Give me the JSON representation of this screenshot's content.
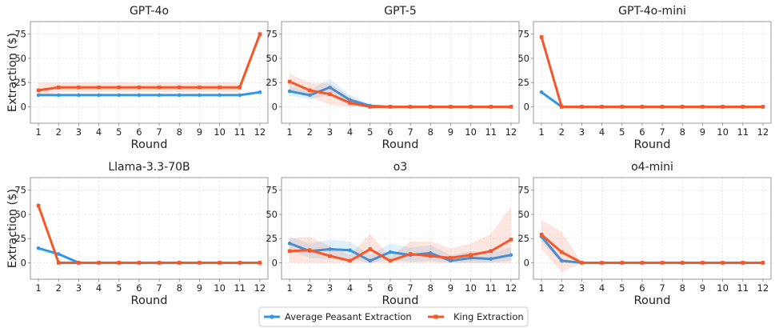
{
  "colors": {
    "peasant": "#2e97ea",
    "king": "#f4582a",
    "grid": "#dcdcdc",
    "axis": "#7f7f7f"
  },
  "legend": {
    "peasant_label": "Average Peasant Extraction",
    "king_label": "King Extraction",
    "placement": "bottom-center"
  },
  "shared_axes": {
    "xlabel": "Round",
    "ylabel": "Extraction ($)",
    "xticks": [
      "1",
      "2",
      "3",
      "4",
      "5",
      "6",
      "7",
      "8",
      "9",
      "10",
      "11",
      "12"
    ],
    "yticks": [
      "0",
      "25",
      "50",
      "75"
    ],
    "ylim": [
      -17,
      88
    ],
    "xlim": [
      0.6,
      12.4
    ],
    "grid": true
  },
  "chart_data": [
    {
      "type": "line",
      "title": "GPT-4o",
      "x": [
        1,
        2,
        3,
        4,
        5,
        6,
        7,
        8,
        9,
        10,
        11,
        12
      ],
      "series": [
        {
          "name": "Average Peasant Extraction",
          "values": [
            12,
            12,
            12,
            12,
            12,
            12,
            12,
            12,
            12,
            12,
            12,
            15
          ],
          "band_lower": [
            12,
            12,
            12,
            12,
            12,
            12,
            12,
            12,
            12,
            12,
            12,
            15
          ],
          "band_upper": [
            12,
            12,
            12,
            12,
            12,
            12,
            12,
            12,
            12,
            12,
            12,
            15
          ]
        },
        {
          "name": "King Extraction",
          "values": [
            17,
            20,
            20,
            20,
            20,
            20,
            20,
            20,
            20,
            20,
            20,
            75
          ],
          "band_lower": [
            10,
            15,
            15,
            15,
            15,
            15,
            15,
            15,
            15,
            15,
            15,
            73
          ],
          "band_upper": [
            25,
            25,
            25,
            25,
            25,
            25,
            25,
            25,
            25,
            25,
            25,
            79
          ]
        }
      ]
    },
    {
      "type": "line",
      "title": "GPT-5",
      "x": [
        1,
        2,
        3,
        4,
        5,
        6,
        7,
        8,
        9,
        10,
        11,
        12
      ],
      "series": [
        {
          "name": "Average Peasant Extraction",
          "values": [
            16,
            12,
            20,
            7,
            1,
            0,
            0,
            0,
            0,
            0,
            0,
            0
          ],
          "band_lower": [
            11,
            8,
            12,
            2,
            0,
            0,
            0,
            0,
            0,
            0,
            0,
            0
          ],
          "band_upper": [
            21,
            17,
            29,
            12,
            3,
            0,
            0,
            0,
            0,
            0,
            0,
            0
          ]
        },
        {
          "name": "King Extraction",
          "values": [
            26,
            17,
            13,
            4,
            0,
            0,
            0,
            0,
            0,
            0,
            0,
            0
          ],
          "band_lower": [
            17,
            10,
            2,
            0,
            0,
            0,
            0,
            0,
            0,
            0,
            0,
            0
          ],
          "band_upper": [
            34,
            25,
            24,
            10,
            1,
            0,
            0,
            0,
            0,
            0,
            0,
            0
          ]
        }
      ]
    },
    {
      "type": "line",
      "title": "GPT-4o-mini",
      "x": [
        1,
        2,
        3,
        4,
        5,
        6,
        7,
        8,
        9,
        10,
        11,
        12
      ],
      "series": [
        {
          "name": "Average Peasant Extraction",
          "values": [
            15,
            0,
            0,
            0,
            0,
            0,
            0,
            0,
            0,
            0,
            0,
            0
          ],
          "band_lower": [
            15,
            0,
            0,
            0,
            0,
            0,
            0,
            0,
            0,
            0,
            0,
            0
          ],
          "band_upper": [
            15,
            0,
            0,
            0,
            0,
            0,
            0,
            0,
            0,
            0,
            0,
            0
          ]
        },
        {
          "name": "King Extraction",
          "values": [
            72,
            0,
            0,
            0,
            0,
            0,
            0,
            0,
            0,
            0,
            0,
            0
          ],
          "band_lower": [
            70,
            0,
            0,
            0,
            0,
            0,
            0,
            0,
            0,
            0,
            0,
            0
          ],
          "band_upper": [
            74,
            0,
            0,
            0,
            0,
            0,
            0,
            0,
            0,
            0,
            0,
            0
          ]
        }
      ]
    },
    {
      "type": "line",
      "title": "Llama-3.3-70B",
      "x": [
        1,
        2,
        3,
        4,
        5,
        6,
        7,
        8,
        9,
        10,
        11,
        12
      ],
      "series": [
        {
          "name": "Average Peasant Extraction",
          "values": [
            15,
            9,
            0,
            0,
            0,
            0,
            0,
            0,
            0,
            0,
            0,
            0
          ],
          "band_lower": [
            15,
            9,
            0,
            0,
            0,
            0,
            0,
            0,
            0,
            0,
            0,
            0
          ],
          "band_upper": [
            15,
            9,
            0,
            0,
            0,
            0,
            0,
            0,
            0,
            0,
            0,
            0
          ]
        },
        {
          "name": "King Extraction",
          "values": [
            59,
            0,
            0,
            0,
            0,
            0,
            0,
            0,
            0,
            0,
            0,
            0
          ],
          "band_lower": [
            57,
            0,
            0,
            0,
            0,
            0,
            0,
            0,
            0,
            0,
            0,
            0
          ],
          "band_upper": [
            61,
            0,
            0,
            0,
            0,
            0,
            0,
            0,
            0,
            0,
            0,
            0
          ]
        }
      ]
    },
    {
      "type": "line",
      "title": "o3",
      "x": [
        1,
        2,
        3,
        4,
        5,
        6,
        7,
        8,
        9,
        10,
        11,
        12
      ],
      "series": [
        {
          "name": "Average Peasant Extraction",
          "values": [
            20,
            12,
            14,
            13,
            2,
            11,
            8,
            10,
            2,
            5,
            4,
            8
          ],
          "band_lower": [
            13,
            5,
            4,
            4,
            0,
            3,
            1,
            2,
            0,
            0,
            0,
            2
          ],
          "band_upper": [
            27,
            20,
            24,
            22,
            8,
            20,
            16,
            18,
            8,
            12,
            10,
            16
          ]
        },
        {
          "name": "King Extraction",
          "values": [
            12,
            13,
            7,
            2,
            14,
            2,
            9,
            7,
            5,
            8,
            12,
            24
          ],
          "band_lower": [
            0,
            0,
            0,
            0,
            0,
            0,
            0,
            0,
            0,
            0,
            0,
            0
          ],
          "band_upper": [
            25,
            27,
            17,
            8,
            30,
            6,
            22,
            22,
            15,
            20,
            30,
            58
          ]
        }
      ]
    },
    {
      "type": "line",
      "title": "o4-mini",
      "x": [
        1,
        2,
        3,
        4,
        5,
        6,
        7,
        8,
        9,
        10,
        11,
        12
      ],
      "series": [
        {
          "name": "Average Peasant Extraction",
          "values": [
            27,
            2,
            0,
            0,
            0,
            0,
            0,
            0,
            0,
            0,
            0,
            0
          ],
          "band_lower": [
            22,
            0,
            0,
            0,
            0,
            0,
            0,
            0,
            0,
            0,
            0,
            0
          ],
          "band_upper": [
            33,
            5,
            0,
            0,
            0,
            0,
            0,
            0,
            0,
            0,
            0,
            0
          ]
        },
        {
          "name": "King Extraction",
          "values": [
            29,
            11,
            0,
            0,
            0,
            0,
            0,
            0,
            0,
            0,
            0,
            0
          ],
          "band_lower": [
            14,
            -10,
            0,
            0,
            0,
            0,
            0,
            0,
            0,
            0,
            0,
            0
          ],
          "band_upper": [
            44,
            32,
            0,
            0,
            0,
            0,
            0,
            0,
            0,
            0,
            0,
            0
          ]
        }
      ]
    }
  ]
}
